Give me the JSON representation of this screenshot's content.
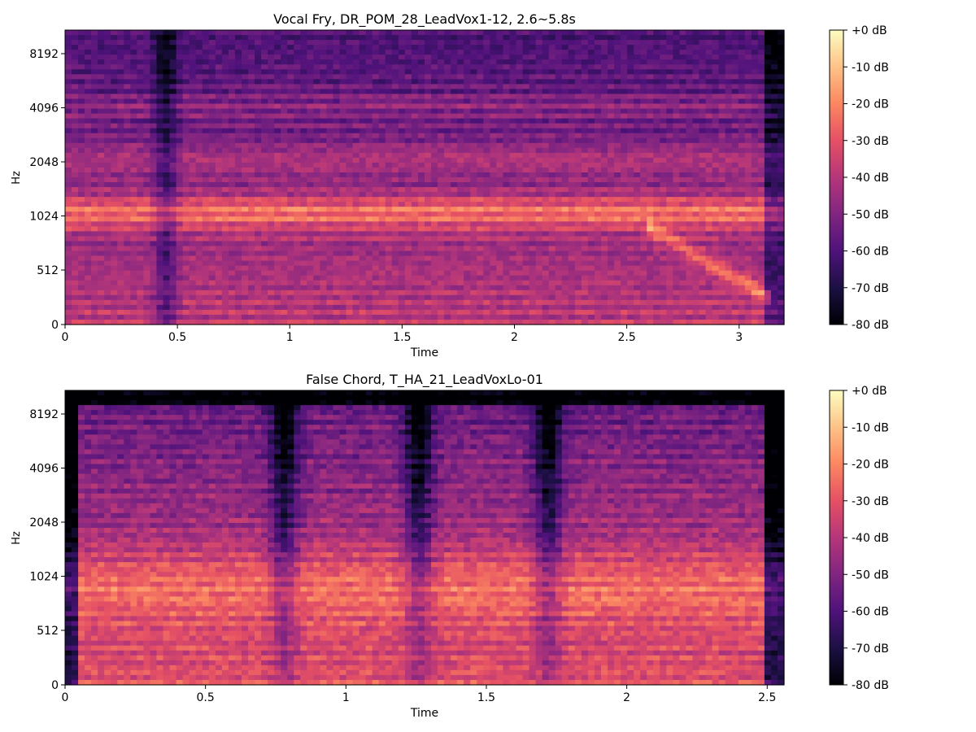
{
  "chart_data": [
    {
      "type": "heatmap",
      "title": "Vocal Fry, DR_POM_28_LeadVox1-12, 2.6~5.8s",
      "xlabel": "Time",
      "ylabel": "Hz",
      "xlim": [
        0,
        3.2
      ],
      "x_ticks": [
        0,
        0.5,
        1,
        1.5,
        2,
        2.5,
        3
      ],
      "x_tick_labels": [
        "0",
        "0.5",
        "1",
        "1.5",
        "2",
        "2.5",
        "3"
      ],
      "y_scale": "log2-like",
      "y_ticks": [
        0,
        512,
        1024,
        2048,
        4096,
        8192
      ],
      "y_tick_labels": [
        "0",
        "512",
        "1024",
        "2048",
        "4096",
        "8192"
      ],
      "colormap": "magma",
      "colorbar": {
        "range_db": [
          -80,
          0
        ],
        "ticks": [
          "+0 dB",
          "-10 dB",
          "-20 dB",
          "-30 dB",
          "-40 dB",
          "-50 dB",
          "-60 dB",
          "-70 dB",
          "-80 dB"
        ]
      }
    },
    {
      "type": "heatmap",
      "title": "False Chord, T_HA_21_LeadVoxLo-01",
      "xlabel": "Time",
      "ylabel": "Hz",
      "xlim": [
        0,
        2.56
      ],
      "x_ticks": [
        0,
        0.5,
        1,
        1.5,
        2,
        2.5
      ],
      "x_tick_labels": [
        "0",
        "0.5",
        "1",
        "1.5",
        "2",
        "2.5"
      ],
      "y_scale": "log2-like",
      "y_ticks": [
        0,
        512,
        1024,
        2048,
        4096,
        8192
      ],
      "y_tick_labels": [
        "0",
        "512",
        "1024",
        "2048",
        "4096",
        "8192"
      ],
      "colormap": "magma",
      "colorbar": {
        "range_db": [
          -80,
          0
        ],
        "ticks": [
          "+0 dB",
          "-10 dB",
          "-20 dB",
          "-30 dB",
          "-40 dB",
          "-50 dB",
          "-60 dB",
          "-70 dB",
          "-80 dB"
        ]
      }
    }
  ],
  "colors": {
    "magma": [
      "#000004",
      "#1c1044",
      "#4f127b",
      "#812581",
      "#b5367a",
      "#e55064",
      "#fb8761",
      "#fec287",
      "#fcfdbf"
    ]
  }
}
